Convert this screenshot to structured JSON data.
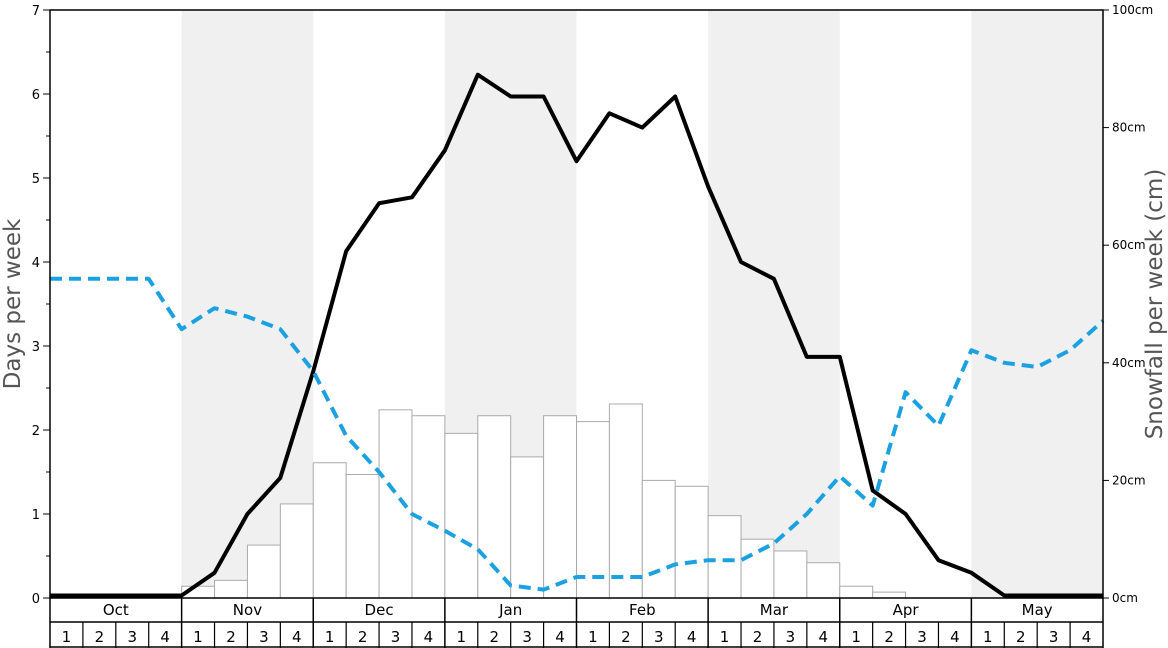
{
  "chart_data": {
    "type": "bar+line",
    "title": "",
    "months": [
      "Oct",
      "Nov",
      "Dec",
      "Jan",
      "Feb",
      "Mar",
      "Apr",
      "May"
    ],
    "weeks": [
      "1",
      "2",
      "3",
      "4"
    ],
    "ylabel_left": "Days per week",
    "ylabel_right": "Snowfall per week (cm)",
    "ylim_left": [
      0,
      7
    ],
    "ylim_right": [
      0,
      100
    ],
    "left_ticks": [
      "0",
      "1",
      "2",
      "3",
      "4",
      "5",
      "6",
      "7"
    ],
    "right_ticks": [
      "0cm",
      "20cm",
      "40cm",
      "60cm",
      "80cm",
      "100cm"
    ],
    "series": [
      {
        "kind": "bar",
        "axis": "right",
        "values": [
          0,
          0,
          0,
          0,
          2,
          3,
          9,
          16,
          23,
          21,
          32,
          31,
          28,
          31,
          24,
          31,
          30,
          33,
          20,
          19,
          14,
          10,
          8,
          6,
          2,
          1,
          0,
          0,
          0,
          0,
          0,
          0
        ]
      },
      {
        "kind": "line",
        "style": "solid",
        "color": "#000000",
        "axis": "left",
        "values": [
          0.03,
          0.03,
          0.03,
          0.03,
          0.3,
          1.0,
          1.43,
          2.7,
          4.13,
          4.7,
          4.77,
          5.33,
          6.23,
          5.97,
          5.97,
          5.2,
          5.77,
          5.6,
          5.97,
          4.9,
          4.0,
          3.8,
          2.87,
          2.87,
          1.28,
          1.0,
          0.45,
          0.3,
          0.03,
          0.03,
          0.03,
          0.03
        ]
      },
      {
        "kind": "line",
        "style": "dashed",
        "color": "#1ba1e2",
        "axis": "left",
        "values": [
          3.8,
          3.8,
          3.8,
          3.2,
          3.45,
          3.35,
          3.2,
          2.7,
          1.93,
          1.5,
          1.0,
          0.8,
          0.58,
          0.15,
          0.1,
          0.25,
          0.25,
          0.25,
          0.4,
          0.45,
          0.45,
          0.65,
          1.0,
          1.45,
          1.1,
          2.45,
          2.05,
          2.95,
          2.8,
          2.75,
          2.95,
          3.3
        ]
      }
    ],
    "grid": false,
    "legend": "none",
    "colors": {
      "bar_fill": "#ffffff",
      "bar_stroke": "#aaaaaa",
      "band": "#f0f0f0"
    }
  }
}
